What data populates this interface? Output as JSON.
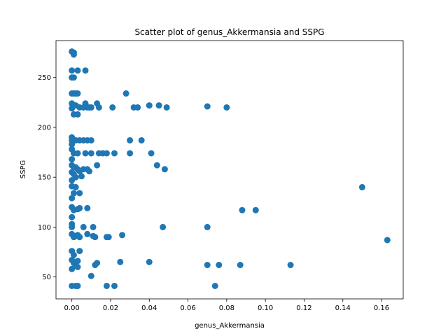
{
  "chart_data": {
    "type": "scatter",
    "title": "Scatter plot of genus_Akkermansia and SSPG",
    "xlabel": "genus_Akkermansia",
    "ylabel": "SSPG",
    "xlim": [
      -0.0082,
      0.1712
    ],
    "ylim": [
      28,
      287
    ],
    "x_ticks": [
      0.0,
      0.02,
      0.04,
      0.06,
      0.08,
      0.1,
      0.12,
      0.14,
      0.16
    ],
    "x_tick_labels": [
      "0.00",
      "0.02",
      "0.04",
      "0.06",
      "0.08",
      "0.10",
      "0.12",
      "0.14",
      "0.16"
    ],
    "y_ticks": [
      50,
      100,
      150,
      200,
      250
    ],
    "y_tick_labels": [
      "50",
      "100",
      "150",
      "200",
      "250"
    ],
    "grid": false,
    "color": "#1f77b4",
    "points": [
      [
        0.0,
        276
      ],
      [
        0.001,
        275
      ],
      [
        0.001,
        273
      ],
      [
        0.0,
        257
      ],
      [
        0.003,
        257
      ],
      [
        0.007,
        257
      ],
      [
        0.0,
        250
      ],
      [
        0.001,
        250
      ],
      [
        0.0,
        234
      ],
      [
        0.001,
        234
      ],
      [
        0.002,
        234
      ],
      [
        0.003,
        234
      ],
      [
        0.028,
        234
      ],
      [
        0.0,
        224
      ],
      [
        0.002,
        222
      ],
      [
        0.004,
        220
      ],
      [
        0.006,
        220
      ],
      [
        0.007,
        224
      ],
      [
        0.008,
        220
      ],
      [
        0.009,
        220
      ],
      [
        0.01,
        220
      ],
      [
        0.013,
        224
      ],
      [
        0.014,
        220
      ],
      [
        0.021,
        220
      ],
      [
        0.032,
        220
      ],
      [
        0.034,
        220
      ],
      [
        0.04,
        222
      ],
      [
        0.045,
        222
      ],
      [
        0.049,
        220
      ],
      [
        0.07,
        221
      ],
      [
        0.08,
        220
      ],
      [
        0.0,
        219
      ],
      [
        0.001,
        213
      ],
      [
        0.003,
        213
      ],
      [
        0.0,
        190
      ],
      [
        0.0,
        187
      ],
      [
        0.002,
        187
      ],
      [
        0.004,
        187
      ],
      [
        0.006,
        187
      ],
      [
        0.008,
        187
      ],
      [
        0.01,
        187
      ],
      [
        0.03,
        187
      ],
      [
        0.036,
        187
      ],
      [
        0.0,
        183
      ],
      [
        0.0,
        178
      ],
      [
        0.001,
        174
      ],
      [
        0.003,
        174
      ],
      [
        0.007,
        174
      ],
      [
        0.01,
        174
      ],
      [
        0.014,
        174
      ],
      [
        0.016,
        174
      ],
      [
        0.018,
        174
      ],
      [
        0.022,
        174
      ],
      [
        0.03,
        174
      ],
      [
        0.041,
        174
      ],
      [
        0.0,
        168
      ],
      [
        0.0,
        162
      ],
      [
        0.001,
        160
      ],
      [
        0.002,
        160
      ],
      [
        0.003,
        158
      ],
      [
        0.004,
        156
      ],
      [
        0.006,
        158
      ],
      [
        0.008,
        158
      ],
      [
        0.009,
        156
      ],
      [
        0.013,
        162
      ],
      [
        0.044,
        162
      ],
      [
        0.048,
        158
      ],
      [
        0.0,
        155
      ],
      [
        0.001,
        153
      ],
      [
        0.002,
        150
      ],
      [
        0.005,
        151
      ],
      [
        0.0,
        147
      ],
      [
        0.0,
        141
      ],
      [
        0.002,
        140
      ],
      [
        0.001,
        134
      ],
      [
        0.004,
        134
      ],
      [
        0.0,
        129
      ],
      [
        0.0,
        120
      ],
      [
        0.001,
        117
      ],
      [
        0.003,
        118
      ],
      [
        0.004,
        119
      ],
      [
        0.008,
        119
      ],
      [
        0.15,
        140
      ],
      [
        0.088,
        117
      ],
      [
        0.095,
        117
      ],
      [
        0.0,
        110
      ],
      [
        0.0,
        103
      ],
      [
        0.0,
        100
      ],
      [
        0.006,
        100
      ],
      [
        0.011,
        100
      ],
      [
        0.047,
        100
      ],
      [
        0.07,
        100
      ],
      [
        0.0,
        93
      ],
      [
        0.001,
        90
      ],
      [
        0.002,
        91
      ],
      [
        0.003,
        92
      ],
      [
        0.004,
        90
      ],
      [
        0.008,
        93
      ],
      [
        0.011,
        91
      ],
      [
        0.012,
        90
      ],
      [
        0.018,
        90
      ],
      [
        0.019,
        90
      ],
      [
        0.026,
        92
      ],
      [
        0.163,
        87
      ],
      [
        0.0,
        76
      ],
      [
        0.001,
        72
      ],
      [
        0.004,
        76
      ],
      [
        0.0,
        67
      ],
      [
        0.001,
        64
      ],
      [
        0.002,
        61
      ],
      [
        0.003,
        66
      ],
      [
        0.003,
        60
      ],
      [
        0.0,
        58
      ],
      [
        0.012,
        62
      ],
      [
        0.013,
        64
      ],
      [
        0.025,
        65
      ],
      [
        0.04,
        65
      ],
      [
        0.07,
        62
      ],
      [
        0.076,
        62
      ],
      [
        0.087,
        62
      ],
      [
        0.113,
        62
      ],
      [
        0.01,
        51
      ],
      [
        0.0,
        41
      ],
      [
        0.002,
        41
      ],
      [
        0.003,
        41
      ],
      [
        0.018,
        41
      ],
      [
        0.022,
        41
      ],
      [
        0.074,
        41
      ]
    ]
  }
}
